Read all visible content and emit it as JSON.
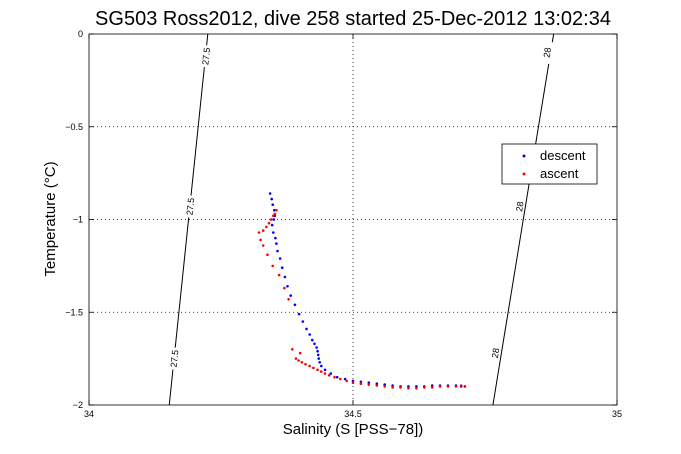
{
  "chart_data": {
    "type": "scatter",
    "title": "SG503 Ross2012, dive 258 started 25-Dec-2012 13:02:34",
    "xlabel": "Salinity (S [PSS−78])",
    "ylabel": "Temperature (°C)",
    "xlim": [
      34,
      35
    ],
    "ylim": [
      -2,
      0
    ],
    "xticks": [
      34,
      34.5,
      35
    ],
    "xtick_labels": [
      "34",
      "34.5",
      "35"
    ],
    "yticks": [
      0,
      -0.5,
      -1,
      -1.5,
      -2
    ],
    "ytick_labels": [
      "0",
      "−0.5",
      "−1",
      "−1.5",
      "−2"
    ],
    "grid": true,
    "legend_location": "upper-right",
    "density_contours": [
      {
        "label": "27.5",
        "points": [
          [
            34.225,
            0
          ],
          [
            34.152,
            -2
          ]
        ],
        "label_positions": [
          [
            34.222,
            -0.12
          ],
          [
            34.192,
            -0.93
          ],
          [
            34.162,
            -1.75
          ]
        ]
      },
      {
        "label": "28",
        "points": [
          [
            34.88,
            0
          ],
          [
            34.765,
            -2
          ]
        ],
        "label_positions": [
          [
            34.868,
            -0.1
          ],
          [
            34.816,
            -0.93
          ],
          [
            34.77,
            -1.72
          ]
        ]
      }
    ],
    "series": [
      {
        "name": "descent",
        "color": "#0000ff",
        "x": [
          34.343,
          34.346,
          34.348,
          34.351,
          34.352,
          34.35,
          34.347,
          34.349,
          34.353,
          34.355,
          34.357,
          34.362,
          34.366,
          34.371,
          34.376,
          34.382,
          34.39,
          34.398,
          34.405,
          34.412,
          34.418,
          34.423,
          34.427,
          34.431,
          34.433,
          34.434,
          34.435,
          34.437,
          34.44,
          34.447,
          34.458,
          34.47,
          34.485,
          34.5,
          34.515,
          34.53,
          34.545,
          34.56,
          34.575,
          34.59,
          34.605,
          34.62,
          34.635,
          34.65,
          34.665,
          34.68,
          34.695,
          34.705,
          34.712
        ],
        "y": [
          -0.86,
          -0.89,
          -0.92,
          -0.95,
          -0.98,
          -1.0,
          -1.03,
          -1.07,
          -1.1,
          -1.13,
          -1.17,
          -1.21,
          -1.26,
          -1.31,
          -1.36,
          -1.41,
          -1.46,
          -1.51,
          -1.55,
          -1.59,
          -1.62,
          -1.65,
          -1.67,
          -1.69,
          -1.71,
          -1.73,
          -1.75,
          -1.77,
          -1.79,
          -1.81,
          -1.83,
          -1.85,
          -1.86,
          -1.87,
          -1.875,
          -1.88,
          -1.885,
          -1.89,
          -1.895,
          -1.9,
          -1.9,
          -1.9,
          -1.9,
          -1.895,
          -1.895,
          -1.895,
          -1.895,
          -1.9,
          -1.9
        ]
      },
      {
        "name": "ascent",
        "color": "#ff0000",
        "x": [
          34.712,
          34.705,
          34.695,
          34.68,
          34.665,
          34.65,
          34.635,
          34.62,
          34.605,
          34.59,
          34.575,
          34.56,
          34.545,
          34.53,
          34.515,
          34.5,
          34.488,
          34.476,
          34.465,
          34.455,
          34.447,
          34.44,
          34.433,
          34.425,
          34.418,
          34.41,
          34.403,
          34.397,
          34.392,
          34.385,
          34.4,
          34.378,
          34.37,
          34.36,
          34.348,
          34.338,
          34.33,
          34.325,
          34.322,
          34.33,
          34.336,
          34.341,
          34.345,
          34.349,
          34.352,
          34.355
        ],
        "y": [
          -1.9,
          -1.895,
          -1.9,
          -1.9,
          -1.9,
          -1.905,
          -1.905,
          -1.91,
          -1.91,
          -1.905,
          -1.905,
          -1.9,
          -1.895,
          -1.89,
          -1.885,
          -1.88,
          -1.87,
          -1.86,
          -1.85,
          -1.84,
          -1.83,
          -1.82,
          -1.81,
          -1.8,
          -1.79,
          -1.78,
          -1.77,
          -1.76,
          -1.75,
          -1.7,
          -1.72,
          -1.43,
          -1.37,
          -1.3,
          -1.25,
          -1.19,
          -1.14,
          -1.11,
          -1.07,
          -1.06,
          -1.04,
          -1.02,
          -1.0,
          -0.98,
          -0.97,
          -0.95
        ]
      }
    ]
  }
}
